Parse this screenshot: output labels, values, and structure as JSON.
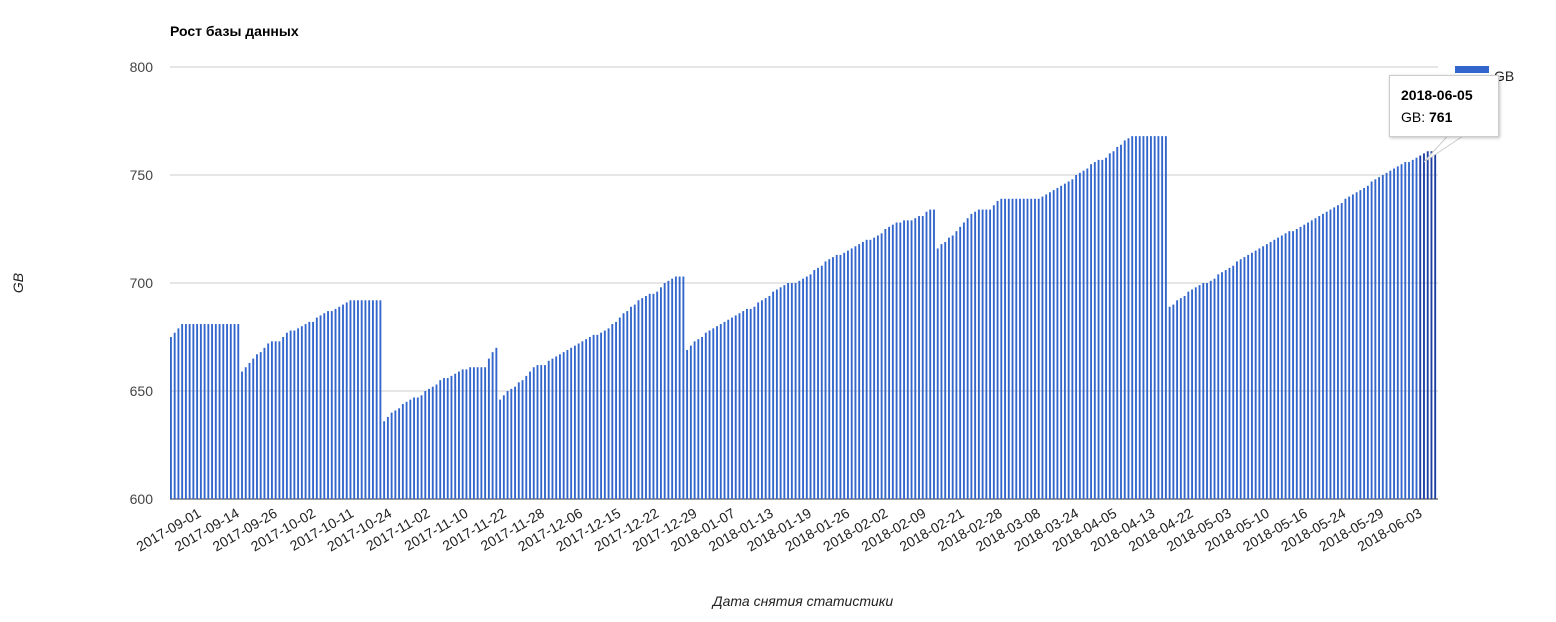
{
  "chart_data": {
    "type": "bar",
    "title": "Рост базы данных",
    "xlabel": "Дата снятия статистики",
    "ylabel": "GB",
    "ylim": [
      600,
      800
    ],
    "yticks": [
      600,
      650,
      700,
      750,
      800
    ],
    "grid": true,
    "legend": {
      "position": "top-right",
      "label": "GB",
      "color": "#3366cc"
    },
    "bar_color": "#3366cc",
    "highlight_color": "#1d3fa3",
    "xtick_labels": [
      "2017-09-01",
      "2017-09-14",
      "2017-09-26",
      "2017-10-02",
      "2017-10-11",
      "2017-10-24",
      "2017-11-02",
      "2017-11-10",
      "2017-11-22",
      "2017-11-28",
      "2017-12-06",
      "2017-12-15",
      "2017-12-22",
      "2017-12-29",
      "2018-01-07",
      "2018-01-13",
      "2018-01-19",
      "2018-01-26",
      "2018-02-02",
      "2018-02-09",
      "2018-02-21",
      "2018-02-28",
      "2018-03-08",
      "2018-03-24",
      "2018-04-05",
      "2018-04-13",
      "2018-04-22",
      "2018-05-03",
      "2018-05-10",
      "2018-05-16",
      "2018-05-24",
      "2018-05-29",
      "2018-06-03"
    ],
    "series": [
      {
        "name": "GB",
        "values": [
          675,
          677,
          679,
          681,
          681,
          681,
          681,
          681,
          681,
          681,
          681,
          681,
          681,
          681,
          681,
          681,
          681,
          681,
          681,
          659,
          661,
          663,
          665,
          667,
          668,
          670,
          672,
          673,
          673,
          673,
          675,
          677,
          678,
          678,
          679,
          680,
          681,
          682,
          682,
          684,
          685,
          686,
          687,
          687,
          688,
          689,
          690,
          691,
          692,
          692,
          692,
          692,
          692,
          692,
          692,
          692,
          692,
          636,
          638,
          640,
          641,
          642,
          644,
          645,
          646,
          647,
          647,
          648,
          650,
          651,
          652,
          653,
          655,
          656,
          656,
          657,
          658,
          659,
          660,
          660,
          661,
          661,
          661,
          661,
          661,
          665,
          668,
          670,
          646,
          648,
          650,
          651,
          652,
          654,
          655,
          657,
          659,
          661,
          662,
          662,
          662,
          664,
          665,
          666,
          667,
          668,
          669,
          670,
          671,
          672,
          673,
          674,
          675,
          676,
          676,
          677,
          678,
          679,
          681,
          682,
          684,
          686,
          687,
          689,
          690,
          692,
          693,
          694,
          695,
          695,
          696,
          698,
          700,
          701,
          702,
          703,
          703,
          703,
          669,
          671,
          673,
          674,
          675,
          677,
          678,
          679,
          680,
          681,
          682,
          683,
          684,
          685,
          686,
          687,
          688,
          688,
          689,
          691,
          692,
          693,
          694,
          696,
          697,
          698,
          699,
          700,
          700,
          700,
          701,
          702,
          703,
          704,
          706,
          707,
          708,
          710,
          711,
          712,
          713,
          713,
          714,
          715,
          716,
          717,
          718,
          719,
          720,
          720,
          721,
          722,
          723,
          725,
          726,
          727,
          728,
          728,
          729,
          729,
          729,
          730,
          731,
          731,
          733,
          734,
          734,
          716,
          718,
          719,
          721,
          722,
          724,
          726,
          728,
          730,
          732,
          733,
          734,
          734,
          734,
          734,
          736,
          738,
          739,
          739,
          739,
          739,
          739,
          739,
          739,
          739,
          739,
          739,
          739,
          740,
          741,
          742,
          743,
          744,
          745,
          746,
          747,
          748,
          750,
          751,
          752,
          753,
          755,
          756,
          757,
          757,
          758,
          760,
          761,
          763,
          764,
          766,
          767,
          768,
          768,
          768,
          768,
          768,
          768,
          768,
          768,
          768,
          768,
          689,
          690,
          692,
          693,
          694,
          696,
          697,
          698,
          699,
          700,
          700,
          701,
          702,
          704,
          705,
          706,
          707,
          708,
          710,
          711,
          712,
          713,
          714,
          715,
          716,
          717,
          718,
          719,
          720,
          721,
          722,
          723,
          724,
          724,
          725,
          726,
          727,
          728,
          729,
          730,
          731,
          732,
          733,
          734,
          735,
          736,
          737,
          739,
          740,
          741,
          742,
          743,
          744,
          745,
          747,
          748,
          749,
          750,
          751,
          752,
          753,
          754,
          755,
          756,
          756,
          757,
          758,
          759,
          760,
          761,
          761,
          761
        ]
      }
    ],
    "tooltip": {
      "date": "2018-06-05",
      "series_label": "GB:",
      "value": "761"
    }
  }
}
